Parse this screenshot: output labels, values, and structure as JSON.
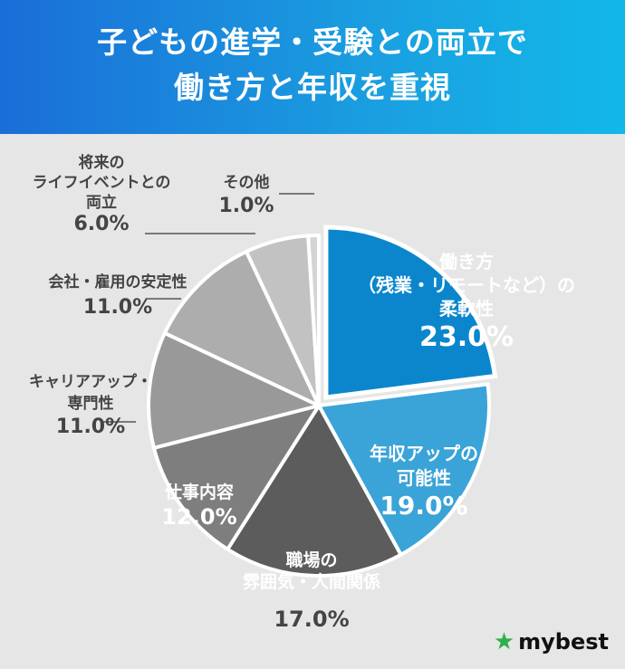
{
  "header": {
    "title_line1": "子どもの進学・受験との両立で",
    "title_line2": "働き方と年収を重視"
  },
  "brand": {
    "name": "mybest",
    "icon": "star-icon"
  },
  "colors": {
    "header_start": "#1a6ed8",
    "header_end": "#12b8e8",
    "brand_star": "#2eb04a"
  },
  "chart_data": {
    "type": "pie",
    "title": "子どもの進学・受験との両立で 働き方と年収を重視",
    "start": "12 o'clock, clockwise",
    "highlighted": "働き方（残業・リモートなど）の柔軟性",
    "slices": [
      {
        "lines": [
          "働き方",
          "（残業・リモートなど）の",
          "柔軟性"
        ],
        "label": "働き方（残業・リモートなど）の柔軟性",
        "value": 23.0,
        "display": "23.0%",
        "color": "#0b86cc",
        "label_color": "#ffffff"
      },
      {
        "lines": [
          "年収アップの",
          "可能性"
        ],
        "label": "年収アップの可能性",
        "value": 19.0,
        "display": "19.0%",
        "color": "#3aa3d8",
        "label_color": "#ffffff"
      },
      {
        "lines": [
          "職場の",
          "雰囲気・人間関係"
        ],
        "label": "職場の雰囲気・人間関係",
        "value": 17.0,
        "display": "17.0%",
        "color": "#5c5c5c",
        "label_color": "#ffffff"
      },
      {
        "lines": [
          "仕事内容"
        ],
        "label": "仕事内容",
        "value": 12.0,
        "display": "12.0%",
        "color": "#7e7e7e",
        "label_color": "#ffffff"
      },
      {
        "lines": [
          "キャリアアップ・",
          "専門性"
        ],
        "label": "キャリアアップ・専門性",
        "value": 11.0,
        "display": "11.0%",
        "color": "#999999",
        "label_color": "#444444"
      },
      {
        "lines": [
          "会社・雇用の安定性"
        ],
        "label": "会社・雇用の安定性",
        "value": 11.0,
        "display": "11.0%",
        "color": "#adadad",
        "label_color": "#444444"
      },
      {
        "lines": [
          "将来の",
          "ライフイベントとの",
          "両立"
        ],
        "label": "将来のライフイベントとの両立",
        "value": 6.0,
        "display": "6.0%",
        "color": "#c2c2c2",
        "label_color": "#444444"
      },
      {
        "lines": [
          "その他"
        ],
        "label": "その他",
        "value": 1.0,
        "display": "1.0%",
        "color": "#d4d4d4",
        "label_color": "#444444"
      }
    ]
  }
}
